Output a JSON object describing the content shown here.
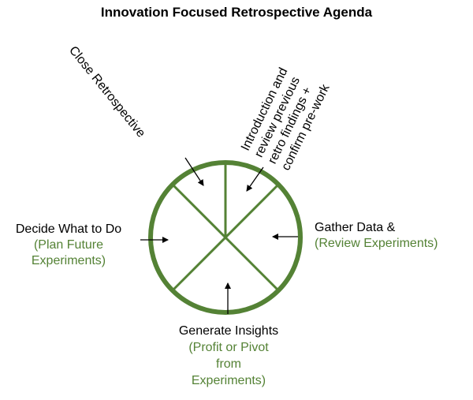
{
  "title": "Innovation Focused Retrospective Agenda",
  "colors": {
    "accent": "#548235",
    "text": "#000000",
    "background": "#ffffff"
  },
  "segments": {
    "close": {
      "label": "Close Retrospective"
    },
    "intro": {
      "lines": [
        "Introduction and",
        "review previous",
        "retro findings +",
        "confirm  pre-work"
      ]
    },
    "gather": {
      "label": "Gather Data &",
      "detail": "(Review Experiments)"
    },
    "insights": {
      "label": "Generate Insights",
      "detail_lines": [
        "(Profit or Pivot",
        "from",
        "Experiments)"
      ]
    },
    "decide": {
      "label": "Decide What to Do",
      "detail_lines": [
        "(Plan Future",
        "Experiments)"
      ]
    }
  }
}
